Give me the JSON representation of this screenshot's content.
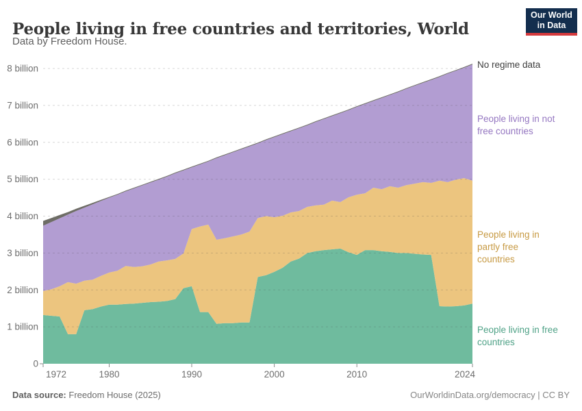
{
  "header": {
    "title": "People living in free countries and territories, World",
    "subtitle": "Data by Freedom House.",
    "logo": {
      "line1": "Our World",
      "line2": "in Data"
    }
  },
  "footer": {
    "source_label": "Data source:",
    "source_value": "Freedom House (2025)",
    "license": "OurWorldinData.org/democracy | CC BY"
  },
  "colors": {
    "background": "#ffffff",
    "logo_navy": "#132e4e",
    "logo_red": "#d4393d",
    "axis_text": "#6d6d6d",
    "gridline": "#4a4a4a"
  },
  "chart_data": {
    "type": "area",
    "stacked": true,
    "title": "People living in free countries and territories, World",
    "xlabel": "",
    "ylabel": "",
    "ytick_unit": "billion",
    "ylim": [
      0,
      8.2
    ],
    "grid": true,
    "legend_position": "right-annotations",
    "yticks": [
      0,
      1,
      2,
      3,
      4,
      5,
      6,
      7,
      8
    ],
    "xticks": [
      1972,
      1980,
      1990,
      2000,
      2010,
      2024
    ],
    "years": [
      1972,
      1973,
      1974,
      1975,
      1976,
      1977,
      1978,
      1979,
      1980,
      1981,
      1982,
      1983,
      1984,
      1985,
      1986,
      1987,
      1988,
      1989,
      1990,
      1991,
      1992,
      1993,
      1994,
      1995,
      1996,
      1997,
      1998,
      1999,
      2000,
      2001,
      2002,
      2003,
      2004,
      2005,
      2006,
      2007,
      2008,
      2009,
      2010,
      2011,
      2012,
      2013,
      2014,
      2015,
      2016,
      2017,
      2018,
      2019,
      2020,
      2021,
      2022,
      2023,
      2024
    ],
    "value_unit_note": "values in billions of people",
    "series": [
      {
        "key": "free",
        "name": "People living in free countries",
        "label_lines": [
          "People living in free",
          "countries"
        ],
        "color": "#6fbb9e",
        "label_color": "#4fa287",
        "values": [
          1.32,
          1.3,
          1.28,
          0.8,
          0.8,
          1.45,
          1.48,
          1.55,
          1.6,
          1.6,
          1.62,
          1.63,
          1.65,
          1.67,
          1.68,
          1.7,
          1.75,
          2.05,
          2.1,
          1.4,
          1.4,
          1.08,
          1.1,
          1.1,
          1.12,
          1.12,
          2.35,
          2.4,
          2.49,
          2.6,
          2.77,
          2.85,
          3.0,
          3.05,
          3.08,
          3.1,
          3.12,
          3.02,
          2.95,
          3.08,
          3.08,
          3.05,
          3.03,
          3.0,
          3.0,
          2.98,
          2.96,
          2.95,
          1.56,
          1.55,
          1.56,
          1.58,
          1.63
        ]
      },
      {
        "key": "partly_free",
        "name": "People living in partly free countries",
        "label_lines": [
          "People living in",
          "partly free",
          "countries"
        ],
        "color": "#ecc57f",
        "label_color": "#c79a43",
        "values": [
          0.65,
          0.72,
          0.82,
          1.41,
          1.37,
          0.8,
          0.8,
          0.83,
          0.87,
          0.92,
          1.03,
          0.99,
          0.99,
          1.02,
          1.09,
          1.1,
          1.09,
          0.94,
          1.55,
          2.32,
          2.37,
          2.28,
          2.3,
          2.35,
          2.38,
          2.46,
          1.6,
          1.6,
          1.48,
          1.41,
          1.33,
          1.29,
          1.25,
          1.24,
          1.23,
          1.32,
          1.26,
          1.49,
          1.63,
          1.54,
          1.69,
          1.68,
          1.78,
          1.77,
          1.84,
          1.9,
          1.96,
          1.95,
          3.4,
          3.37,
          3.43,
          3.45,
          3.33
        ]
      },
      {
        "key": "not_free",
        "name": "People living in not free countries",
        "label_lines": [
          "People living in not",
          "free countries"
        ],
        "color": "#b29dd2",
        "label_color": "#9577c1",
        "values": [
          1.77,
          1.82,
          1.84,
          1.83,
          1.97,
          1.98,
          2.04,
          2.03,
          2.03,
          2.06,
          2.02,
          2.13,
          2.19,
          2.22,
          2.22,
          2.27,
          2.32,
          2.25,
          1.67,
          1.68,
          1.71,
          2.21,
          2.25,
          2.28,
          2.31,
          2.31,
          2.02,
          2.06,
          2.17,
          2.21,
          2.2,
          2.24,
          2.21,
          2.26,
          2.32,
          2.29,
          2.41,
          2.36,
          2.38,
          2.42,
          2.35,
          2.47,
          2.47,
          2.59,
          2.61,
          2.65,
          2.69,
          2.79,
          2.81,
          2.94,
          2.95,
          2.99,
          3.15
        ]
      },
      {
        "key": "no_data",
        "name": "No regime data",
        "label_lines": [
          "No regime data"
        ],
        "color": "#6e6d66",
        "label_color": "#3d3d3d",
        "values": [
          0.13,
          0.11,
          0.09,
          0.07,
          0.06,
          0.05,
          0.04,
          0.03,
          0.02,
          0.02,
          0.02,
          0.02,
          0.02,
          0.02,
          0.02,
          0.02,
          0.02,
          0.02,
          0.02,
          0.02,
          0.02,
          0.02,
          0.02,
          0.02,
          0.02,
          0.02,
          0.02,
          0.02,
          0.02,
          0.02,
          0.02,
          0.02,
          0.02,
          0.02,
          0.02,
          0.02,
          0.02,
          0.02,
          0.02,
          0.02,
          0.02,
          0.02,
          0.02,
          0.02,
          0.02,
          0.02,
          0.02,
          0.02,
          0.02,
          0.02,
          0.02,
          0.02,
          0.02
        ]
      }
    ]
  }
}
